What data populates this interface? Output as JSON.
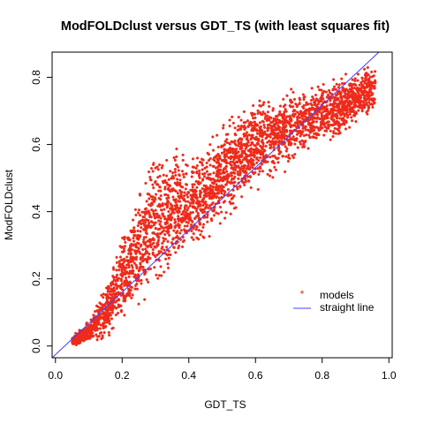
{
  "chart_data": {
    "type": "scatter",
    "title": "ModFOLDclust versus GDT_TS (with least squares fit)",
    "xlabel": "GDT_TS",
    "ylabel": "ModFOLDclust",
    "xlim": [
      -0.01,
      1.01
    ],
    "ylim": [
      -0.035,
      0.875
    ],
    "x_ticks": [
      0.0,
      0.2,
      0.4,
      0.6,
      0.8,
      1.0
    ],
    "x_tick_labels": [
      "0.0",
      "0.2",
      "0.4",
      "0.6",
      "0.8",
      "1.0"
    ],
    "y_ticks": [
      0.0,
      0.2,
      0.4,
      0.6,
      0.8
    ],
    "y_tick_labels": [
      "0.0",
      "0.2",
      "0.4",
      "0.6",
      "0.8"
    ],
    "grid": false,
    "legend_position": "bottom-right",
    "series": [
      {
        "name": "models",
        "kind": "points",
        "color": "#ee2a1a",
        "marker": "star",
        "bands": [
          {
            "x": 0.05,
            "y_lo": 0.0,
            "y_hi": 0.03
          },
          {
            "x": 0.1,
            "y_lo": 0.0,
            "y_hi": 0.08
          },
          {
            "x": 0.15,
            "y_lo": 0.0,
            "y_hi": 0.2
          },
          {
            "x": 0.2,
            "y_lo": 0.04,
            "y_hi": 0.36
          },
          {
            "x": 0.25,
            "y_lo": 0.08,
            "y_hi": 0.5
          },
          {
            "x": 0.3,
            "y_lo": 0.12,
            "y_hi": 0.62
          },
          {
            "x": 0.35,
            "y_lo": 0.18,
            "y_hi": 0.62
          },
          {
            "x": 0.4,
            "y_lo": 0.24,
            "y_hi": 0.6
          },
          {
            "x": 0.45,
            "y_lo": 0.28,
            "y_hi": 0.62
          },
          {
            "x": 0.5,
            "y_lo": 0.34,
            "y_hi": 0.68
          },
          {
            "x": 0.55,
            "y_lo": 0.4,
            "y_hi": 0.72
          },
          {
            "x": 0.6,
            "y_lo": 0.44,
            "y_hi": 0.76
          },
          {
            "x": 0.65,
            "y_lo": 0.48,
            "y_hi": 0.77
          },
          {
            "x": 0.7,
            "y_lo": 0.52,
            "y_hi": 0.78
          },
          {
            "x": 0.75,
            "y_lo": 0.56,
            "y_hi": 0.79
          },
          {
            "x": 0.8,
            "y_lo": 0.6,
            "y_hi": 0.8
          },
          {
            "x": 0.85,
            "y_lo": 0.6,
            "y_hi": 0.82
          },
          {
            "x": 0.9,
            "y_lo": 0.64,
            "y_hi": 0.84
          },
          {
            "x": 0.96,
            "y_lo": 0.68,
            "y_hi": 0.85
          }
        ]
      },
      {
        "name": "straight line",
        "kind": "line",
        "color": "#4040ff",
        "x": [
          -0.01,
          0.97
        ],
        "y": [
          -0.035,
          0.875
        ]
      }
    ]
  }
}
